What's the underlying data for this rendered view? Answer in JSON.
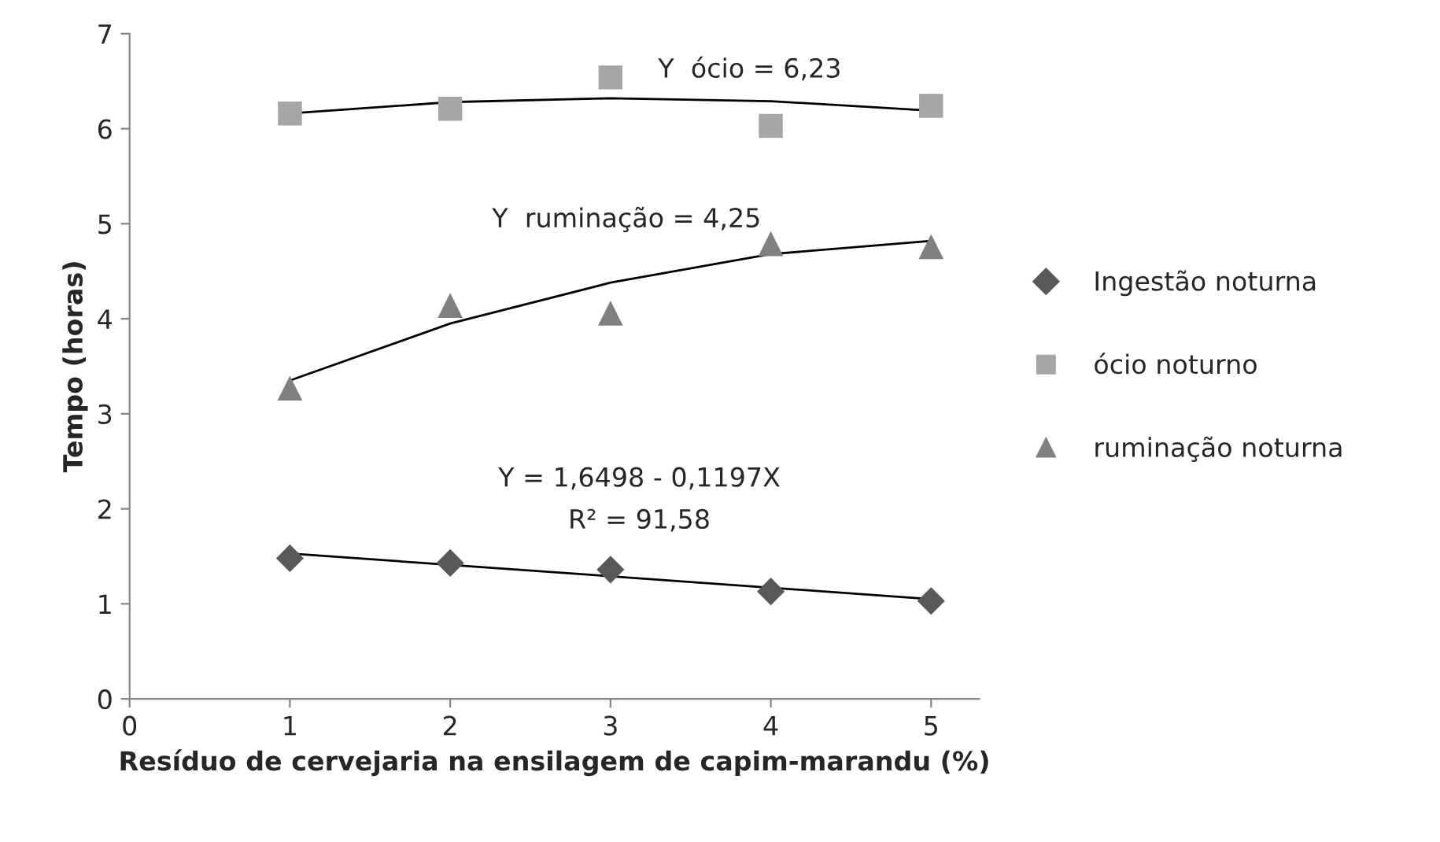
{
  "chart_data": {
    "type": "scatter",
    "xlabel": "Resíduo de cervejaria na ensilagem de capim-marandu (%)",
    "ylabel": "Tempo (horas)",
    "x": [
      1,
      2,
      3,
      4,
      5
    ],
    "series": [
      {
        "name": "Ingestão noturna",
        "color": "#595959",
        "marker": "diamond",
        "values": [
          1.48,
          1.43,
          1.36,
          1.13,
          1.03
        ]
      },
      {
        "name": "ócio noturno",
        "color": "#a6a6a6",
        "marker": "square",
        "values": [
          6.16,
          6.21,
          6.54,
          6.03,
          6.24
        ]
      },
      {
        "name": "ruminação noturna",
        "color": "#808080",
        "marker": "triangle",
        "values": [
          3.27,
          4.14,
          4.06,
          4.79,
          4.76
        ]
      },
      {
        "type": "line",
        "color": "#000000",
        "marker": "none",
        "x": [
          1,
          5
        ],
        "values": [
          1.53,
          1.05
        ]
      },
      {
        "type": "line",
        "color": "#000000",
        "marker": "none",
        "x": [
          1,
          2,
          3,
          4,
          5
        ],
        "values": [
          6.16,
          6.28,
          6.32,
          6.29,
          6.19
        ]
      },
      {
        "type": "line",
        "color": "#000000",
        "marker": "none",
        "x": [
          1,
          2,
          3,
          4,
          5
        ],
        "values": [
          3.35,
          3.95,
          4.38,
          4.68,
          4.82
        ]
      }
    ],
    "xlim": [
      0,
      5.3
    ],
    "xticks": [
      0,
      1,
      2,
      3,
      4,
      5
    ],
    "ylim": [
      0,
      7
    ],
    "yticks": [
      0,
      1,
      2,
      3,
      4,
      5,
      6,
      7
    ],
    "grid": false,
    "legend": "right",
    "annotations": [
      "Y  ócio = 6,23",
      "Y  ruminação = 4,25",
      "Y = 1,6498 - 0,1197X",
      "R² = 91,58"
    ]
  }
}
